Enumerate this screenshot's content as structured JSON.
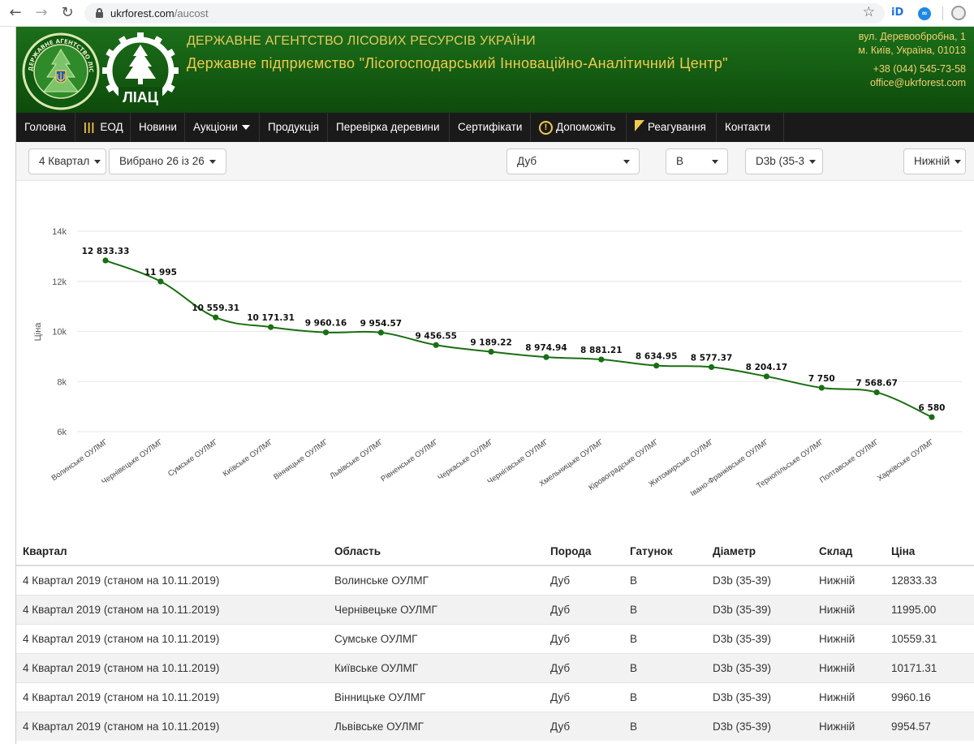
{
  "browser": {
    "url_host": "ukrforest.com",
    "url_path": "/aucost"
  },
  "header": {
    "agency": "ДЕРЖАВНЕ АГЕНТСТВО ЛІСОВИХ РЕСУРСІВ УКРАЇНИ",
    "company": "Державне підприємство \"Лісогосподарський Інноваційно-Аналітичний Центр\"",
    "logo_text": "ЛІАЦ",
    "logo_ring_text": "ДЕРЖАВНЕ АГЕНТСТВО ЛІСОВИХ РЕСУРСІВ",
    "address_line1": "вул. Деревообробна, 1",
    "address_line2": "м. Київ, Україна, 01013",
    "phone": "+38 (044) 545-73-58",
    "email": "office@ukrforest.com"
  },
  "menu": {
    "items": [
      "Головна",
      "ЕОД",
      "Новини",
      "Аукціони",
      "Продукція",
      "Перевірка деревини",
      "Сертифікати",
      "Допоможіть",
      "Реагування",
      "Контакти"
    ],
    "eod_icon": "|||",
    "help_icon": "!"
  },
  "filters": {
    "quarter": "4 Квартал",
    "selected": "Вибрано 26 із 26",
    "species": "Дуб",
    "grade": "B",
    "diameter": "D3b (35-3",
    "warehouse": "Нижній"
  },
  "chart_data": {
    "type": "line",
    "ylabel": "Ціна",
    "ylim": [
      6000,
      14000
    ],
    "yticks": [
      "6k",
      "8k",
      "10k",
      "12k",
      "14k"
    ],
    "categories": [
      "Волинське ОУЛМГ",
      "Чернівецьке ОУЛМГ",
      "Сумське ОУЛМГ",
      "Київське ОУЛМГ",
      "Вінницьке ОУЛМГ",
      "Львівське ОУЛМГ",
      "Рівненське ОУЛМГ",
      "Черкаське ОУЛМГ",
      "Чернігівське ОУЛМГ",
      "Хмельницьке ОУЛМГ",
      "Кіровоградське ОУЛМГ",
      "Житомирське ОУЛМГ",
      "Івано-Франківське ОУЛМГ",
      "Тернопільське ОУЛМГ",
      "Полтавське ОУЛМГ",
      "Харківське ОУЛМГ"
    ],
    "values": [
      12833.33,
      11995,
      10559.31,
      10171.31,
      9960.16,
      9954.57,
      9456.55,
      9189.22,
      8974.94,
      8881.21,
      8634.95,
      8577.37,
      8204.17,
      7750,
      7568.67,
      6580
    ],
    "labels": [
      "12 833.33",
      "11 995",
      "10 559.31",
      "10 171.31",
      "9 960.16",
      "9 954.57",
      "9 456.55",
      "9 189.22",
      "8 974.94",
      "8 881.21",
      "8 634.95",
      "8 577.37",
      "8 204.17",
      "7 750",
      "7 568.67",
      "6 580"
    ],
    "color": "#1a6e13",
    "grid": true
  },
  "table": {
    "headers": [
      "Квартал",
      "Область",
      "Порода",
      "Гатунок",
      "Діаметр",
      "Склад",
      "Ціна"
    ],
    "rows": [
      [
        "4 Квартал 2019 (станом на 10.11.2019)",
        "Волинське ОУЛМГ",
        "Дуб",
        "B",
        "D3b (35-39)",
        "Нижній",
        "12833.33"
      ],
      [
        "4 Квартал 2019 (станом на 10.11.2019)",
        "Чернівецьке ОУЛМГ",
        "Дуб",
        "B",
        "D3b (35-39)",
        "Нижній",
        "11995.00"
      ],
      [
        "4 Квартал 2019 (станом на 10.11.2019)",
        "Сумське ОУЛМГ",
        "Дуб",
        "B",
        "D3b (35-39)",
        "Нижній",
        "10559.31"
      ],
      [
        "4 Квартал 2019 (станом на 10.11.2019)",
        "Київське ОУЛМГ",
        "Дуб",
        "B",
        "D3b (35-39)",
        "Нижній",
        "10171.31"
      ],
      [
        "4 Квартал 2019 (станом на 10.11.2019)",
        "Вінницьке ОУЛМГ",
        "Дуб",
        "B",
        "D3b (35-39)",
        "Нижній",
        "9960.16"
      ],
      [
        "4 Квартал 2019 (станом на 10.11.2019)",
        "Львівське ОУЛМГ",
        "Дуб",
        "B",
        "D3b (35-39)",
        "Нижній",
        "9954.57"
      ]
    ]
  }
}
